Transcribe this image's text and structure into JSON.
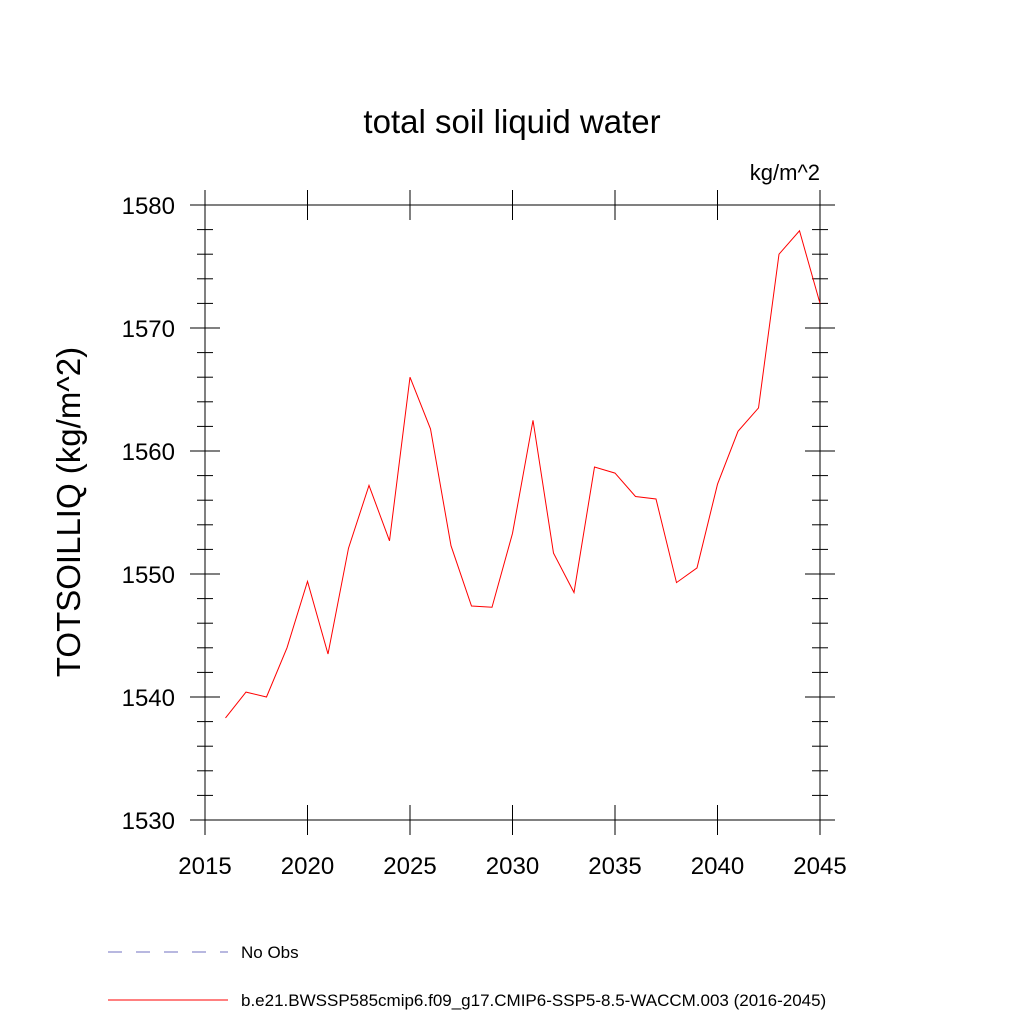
{
  "chart_data": {
    "type": "line",
    "title": "total soil liquid water",
    "units": "kg/m^2",
    "xlabel": "",
    "ylabel": "TOTSOILLIQ  (kg/m^2)",
    "xlim": [
      2015,
      2045
    ],
    "ylim": [
      1530,
      1580
    ],
    "x_ticks": [
      2015,
      2020,
      2025,
      2030,
      2035,
      2040,
      2045
    ],
    "x_tick_labels": [
      "2015",
      "2020",
      "2025",
      "2030",
      "2035",
      "2040",
      "2045"
    ],
    "y_ticks": [
      1530,
      1540,
      1550,
      1560,
      1570,
      1580
    ],
    "y_tick_labels": [
      "1530",
      "1540",
      "1550",
      "1560",
      "1570",
      "1580"
    ],
    "grid": false,
    "legend_position": "bottom-left",
    "series": [
      {
        "name": "b.e21.BWSSP585cmip6.f09_g17.CMIP6-SSP5-8.5-WACCM.003 (2016-2045)",
        "color": "#ff0000",
        "style": "solid",
        "x": [
          2016,
          2017,
          2018,
          2019,
          2020,
          2021,
          2022,
          2023,
          2024,
          2025,
          2026,
          2027,
          2028,
          2029,
          2030,
          2031,
          2032,
          2033,
          2034,
          2035,
          2036,
          2037,
          2038,
          2039,
          2040,
          2041,
          2042,
          2043,
          2044,
          2045
        ],
        "values": [
          1538.3,
          1540.4,
          1540.0,
          1544.0,
          1549.4,
          1543.5,
          1552.1,
          1557.2,
          1552.7,
          1566.0,
          1561.8,
          1552.3,
          1547.4,
          1547.3,
          1553.3,
          1562.5,
          1551.7,
          1548.5,
          1558.7,
          1558.2,
          1556.3,
          1556.1,
          1549.3,
          1550.5,
          1557.3,
          1561.6,
          1563.5,
          1576.0,
          1577.9,
          1572.0
        ]
      }
    ],
    "legend": [
      {
        "label": "No Obs",
        "color": "#7070c0",
        "style": "dashed"
      },
      {
        "label": "b.e21.BWSSP585cmip6.f09_g17.CMIP6-SSP5-8.5-WACCM.003 (2016-2045)",
        "color": "#ff0000",
        "style": "solid"
      }
    ]
  }
}
